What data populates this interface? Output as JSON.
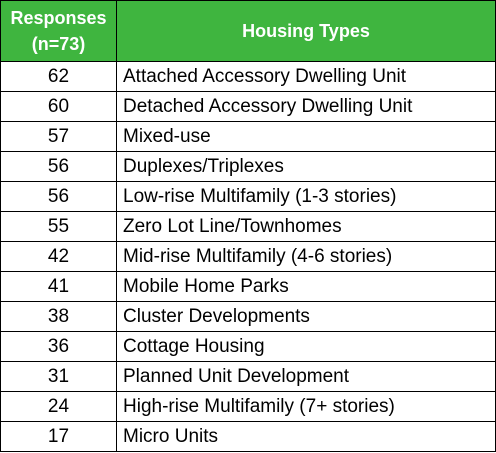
{
  "table": {
    "header": {
      "responses_line1": "Responses",
      "responses_line2": "(n=73)",
      "housing_types": "Housing Types"
    },
    "rows": [
      {
        "responses": "62",
        "type": "Attached Accessory Dwelling Unit"
      },
      {
        "responses": "60",
        "type": "Detached Accessory Dwelling Unit"
      },
      {
        "responses": "57",
        "type": "Mixed-use"
      },
      {
        "responses": "56",
        "type": "Duplexes/Triplexes"
      },
      {
        "responses": "56",
        "type": "Low-rise Multifamily (1-3 stories)"
      },
      {
        "responses": "55",
        "type": "Zero Lot Line/Townhomes"
      },
      {
        "responses": "42",
        "type": "Mid-rise Multifamily (4-6 stories)"
      },
      {
        "responses": "41",
        "type": "Mobile Home Parks"
      },
      {
        "responses": "38",
        "type": "Cluster Developments"
      },
      {
        "responses": "36",
        "type": "Cottage Housing"
      },
      {
        "responses": "31",
        "type": "Planned Unit Development"
      },
      {
        "responses": "24",
        "type": "High-rise Multifamily (7+ stories)"
      },
      {
        "responses": "17",
        "type": "Micro Units"
      }
    ],
    "colors": {
      "header_bg": "#3fb53f",
      "header_text": "#ffffff",
      "border": "#000000"
    }
  }
}
